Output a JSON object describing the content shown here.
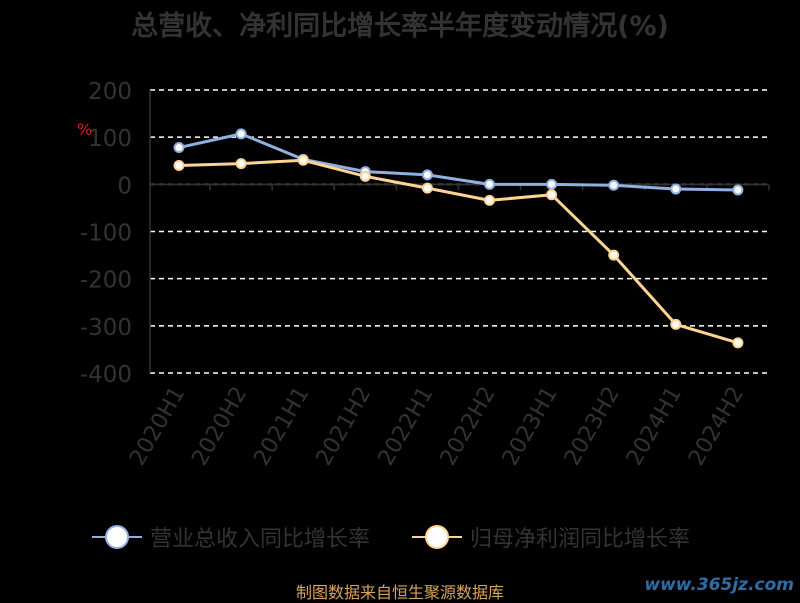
{
  "chart_data": {
    "type": "line",
    "title": "总营收、净利同比增长率半年度变动情况(%)",
    "ylabel": "%",
    "categories": [
      "2020H1",
      "2020H2",
      "2021H1",
      "2021H2",
      "2022H1",
      "2022H2",
      "2023H1",
      "2023H2",
      "2024H1",
      "2024H2"
    ],
    "ylim": [
      -400,
      200
    ],
    "yticks": [
      200,
      100,
      0,
      -100,
      -200,
      -300,
      -400
    ],
    "grid": true,
    "legend_position": "bottom",
    "series": [
      {
        "name": "营业总收入同比增长率",
        "color": "#8fb0e0",
        "values": [
          78,
          107,
          53,
          27,
          20,
          0,
          0,
          -2,
          -10,
          -12
        ]
      },
      {
        "name": "归母净利润同比增长率",
        "color": "#ffd391",
        "values": [
          40,
          44,
          51,
          17,
          -8,
          -34,
          -22,
          -150,
          -297,
          -336
        ]
      }
    ]
  },
  "footer": {
    "source": "制图数据来自恒生聚源数据库",
    "watermark": "www.365jz.com"
  }
}
